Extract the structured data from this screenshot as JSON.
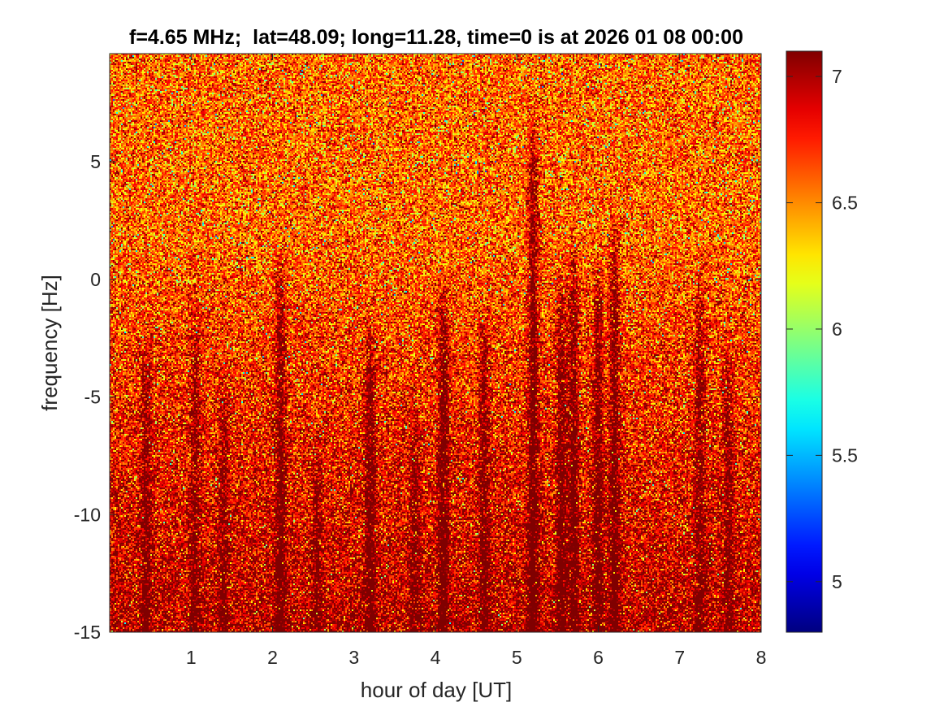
{
  "chart_data": {
    "type": "heatmap",
    "title": "f=4.65 MHz;  lat=48.09; long=11.28, time=0 is at 2026 01 08 00:00",
    "xlabel": "hour of day [UT]",
    "ylabel": "frequency [Hz]",
    "xlim": [
      0,
      8
    ],
    "ylim": [
      -15,
      9.6
    ],
    "xticks": [
      1,
      2,
      3,
      4,
      5,
      6,
      7,
      8
    ],
    "xtick_labels": [
      "1",
      "2",
      "3",
      "4",
      "5",
      "6",
      "7",
      "8"
    ],
    "yticks": [
      -15,
      -10,
      -5,
      0,
      5
    ],
    "ytick_labels": [
      "-15",
      "-10",
      "-5",
      "0",
      "5"
    ],
    "colorbar": {
      "colormap": "jet",
      "clim": [
        4.8,
        7.1
      ],
      "ticks": [
        5,
        5.5,
        6,
        6.5,
        7
      ],
      "tick_labels": [
        "5",
        "5.5",
        "6",
        "6.5",
        "7"
      ]
    },
    "value_summary": {
      "background_level": 6.6,
      "strong_level": 7.0,
      "noise_amplitude": 0.25
    },
    "enhanced_streaks": [
      {
        "hour": 0.45,
        "top_freq_hz": -1.5,
        "strength": 0.35
      },
      {
        "hour": 1.05,
        "top_freq_hz": 0.5,
        "strength": 0.3
      },
      {
        "hour": 1.4,
        "top_freq_hz": -3.0,
        "strength": 0.3
      },
      {
        "hour": 2.1,
        "top_freq_hz": 2.0,
        "strength": 0.45
      },
      {
        "hour": 2.55,
        "top_freq_hz": -6.0,
        "strength": 0.3
      },
      {
        "hour": 3.2,
        "top_freq_hz": -1.0,
        "strength": 0.45
      },
      {
        "hour": 3.75,
        "top_freq_hz": -4.5,
        "strength": 0.3
      },
      {
        "hour": 4.1,
        "top_freq_hz": 0.5,
        "strength": 0.5
      },
      {
        "hour": 4.6,
        "top_freq_hz": -0.5,
        "strength": 0.4
      },
      {
        "hour": 5.2,
        "top_freq_hz": 7.5,
        "strength": 0.55
      },
      {
        "hour": 5.55,
        "top_freq_hz": 1.0,
        "strength": 0.45
      },
      {
        "hour": 5.7,
        "top_freq_hz": 2.5,
        "strength": 0.45
      },
      {
        "hour": 6.0,
        "top_freq_hz": 1.5,
        "strength": 0.45
      },
      {
        "hour": 6.2,
        "top_freq_hz": 3.0,
        "strength": 0.45
      },
      {
        "hour": 7.25,
        "top_freq_hz": 0.5,
        "strength": 0.35
      },
      {
        "hour": 7.6,
        "top_freq_hz": -2.0,
        "strength": 0.3
      }
    ]
  }
}
